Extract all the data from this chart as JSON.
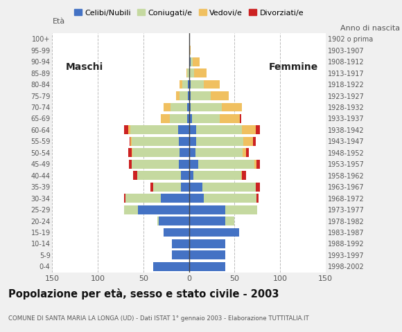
{
  "age_groups": [
    "0-4",
    "5-9",
    "10-14",
    "15-19",
    "20-24",
    "25-29",
    "30-34",
    "35-39",
    "40-44",
    "45-49",
    "50-54",
    "55-59",
    "60-64",
    "65-69",
    "70-74",
    "75-79",
    "80-84",
    "85-89",
    "90-94",
    "95-99",
    "100+"
  ],
  "birth_years": [
    "1998-2002",
    "1993-1997",
    "1988-1992",
    "1983-1987",
    "1978-1982",
    "1973-1977",
    "1968-1972",
    "1963-1967",
    "1958-1962",
    "1953-1957",
    "1948-1952",
    "1943-1947",
    "1938-1942",
    "1933-1937",
    "1928-1932",
    "1923-1927",
    "1918-1922",
    "1913-1917",
    "1908-1912",
    "1903-1907",
    "1902 o prima"
  ],
  "males": {
    "celibi": [
      39,
      19,
      19,
      28,
      33,
      56,
      31,
      9,
      9,
      11,
      10,
      11,
      12,
      2,
      2,
      1,
      1,
      0,
      0,
      0,
      0
    ],
    "coniugati": [
      0,
      0,
      0,
      0,
      2,
      15,
      39,
      30,
      48,
      52,
      52,
      52,
      52,
      19,
      18,
      9,
      6,
      2,
      0,
      0,
      0
    ],
    "vedovi": [
      0,
      0,
      0,
      0,
      0,
      0,
      0,
      0,
      0,
      0,
      1,
      1,
      3,
      10,
      8,
      4,
      3,
      1,
      0,
      0,
      0
    ],
    "divorziati": [
      0,
      0,
      0,
      0,
      0,
      0,
      1,
      3,
      4,
      3,
      4,
      1,
      4,
      0,
      0,
      0,
      0,
      0,
      0,
      0,
      0
    ]
  },
  "females": {
    "nubili": [
      40,
      40,
      40,
      55,
      40,
      40,
      16,
      15,
      5,
      10,
      7,
      8,
      8,
      3,
      2,
      2,
      2,
      1,
      2,
      0,
      0
    ],
    "coniugate": [
      0,
      0,
      0,
      0,
      10,
      35,
      58,
      58,
      52,
      62,
      52,
      52,
      50,
      31,
      34,
      22,
      14,
      5,
      2,
      0,
      0
    ],
    "vedove": [
      0,
      0,
      0,
      0,
      0,
      0,
      0,
      0,
      1,
      2,
      4,
      10,
      15,
      22,
      22,
      20,
      18,
      13,
      8,
      2,
      0
    ],
    "divorziate": [
      0,
      0,
      0,
      0,
      0,
      0,
      2,
      5,
      5,
      4,
      3,
      3,
      5,
      1,
      0,
      0,
      0,
      0,
      0,
      0,
      0
    ]
  },
  "colors": {
    "celibi_nubili": "#4472C4",
    "coniugati": "#C5D9A0",
    "vedovi": "#F0C060",
    "divorziati": "#CC2222"
  },
  "xlim": 150,
  "title": "Popolazione per età, sesso e stato civile - 2003",
  "subtitle": "COMUNE DI SANTA MARIA LA LONGA (UD) - Dati ISTAT 1° gennaio 2003 - Elaborazione TUTTITALIA.IT",
  "label_eta": "Età",
  "label_maschi": "Maschi",
  "label_femmine": "Femmine",
  "legend_labels": [
    "Celibi/Nubili",
    "Coniugati/e",
    "Vedovi/e",
    "Divorziati/e"
  ],
  "label_anno": "Anno di nascita",
  "bg_color": "#F0F0F0",
  "plot_bg": "#FFFFFF",
  "grid_color": "#BBBBBB"
}
